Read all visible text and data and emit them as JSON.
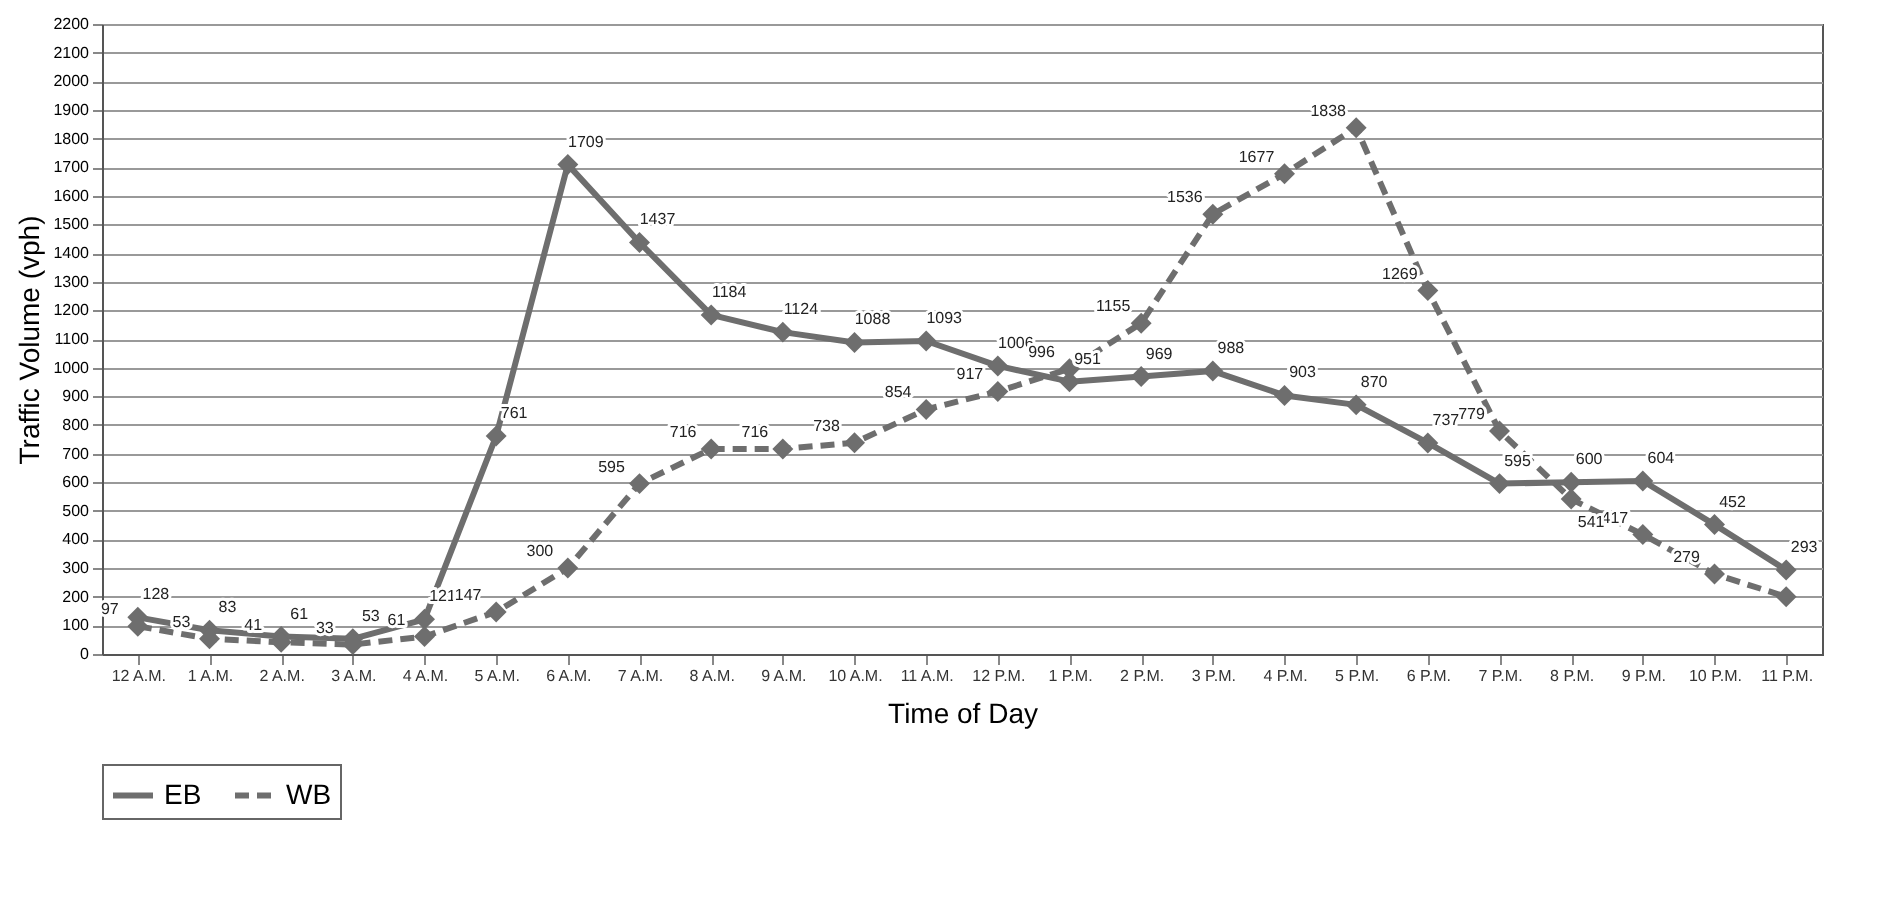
{
  "chart_data": {
    "type": "line",
    "xlabel": "Time of Day",
    "ylabel": "Traffic Volume (vph)",
    "categories": [
      "12 A.M.",
      "1 A.M.",
      "2 A.M.",
      "3 A.M.",
      "4 A.M.",
      "5 A.M.",
      "6 A.M.",
      "7 A.M.",
      "8 A.M.",
      "9 A.M.",
      "10 A.M.",
      "11 A.M.",
      "12 P.M.",
      "1 P.M.",
      "2 P.M.",
      "3 P.M.",
      "4 P.M.",
      "5 P.M.",
      "6 P.M.",
      "7 P.M.",
      "8 P.M.",
      "9 P.M.",
      "10 P.M.",
      "11 P.M."
    ],
    "series": [
      {
        "name": "EB",
        "color": "#6e6e6e",
        "line_style": "solid",
        "values": [
          128,
          83,
          61,
          53,
          121,
          761,
          1709,
          1437,
          1184,
          1124,
          1088,
          1093,
          1006,
          951,
          969,
          988,
          903,
          870,
          737,
          595,
          600,
          604,
          452,
          293
        ],
        "value_labels": [
          "128",
          "83",
          "61",
          "53",
          "121",
          "761",
          "1709",
          "1437",
          "1184",
          "1124",
          "1088",
          "1093",
          "1006",
          "951",
          "969",
          "988",
          "903",
          "870",
          "737",
          "595",
          "600",
          "604",
          "452",
          "293"
        ]
      },
      {
        "name": "WB",
        "color": "#6e6e6e",
        "line_style": "dashed",
        "values": [
          97,
          53,
          41,
          33,
          61,
          147,
          300,
          595,
          716,
          716,
          738,
          854,
          917,
          996,
          1155,
          1536,
          1677,
          1838,
          1269,
          779,
          541,
          417,
          279,
          200
        ],
        "value_labels": [
          "97",
          "53",
          "41",
          "33",
          "61",
          "147",
          "300",
          "595",
          "716",
          "716",
          "738",
          "854",
          "917",
          "996",
          "1155",
          "1536",
          "1677",
          "1838",
          "1269",
          "779",
          "541",
          "417",
          "279",
          null
        ]
      }
    ],
    "ylim": [
      0,
      2200
    ],
    "yticks": [
      0,
      100,
      200,
      300,
      400,
      500,
      600,
      700,
      800,
      900,
      1000,
      1100,
      1200,
      1300,
      1400,
      1500,
      1600,
      1700,
      1800,
      1900,
      2000,
      2100,
      2200
    ],
    "grid": "y",
    "legend": "bottom",
    "marker": "diamond"
  }
}
